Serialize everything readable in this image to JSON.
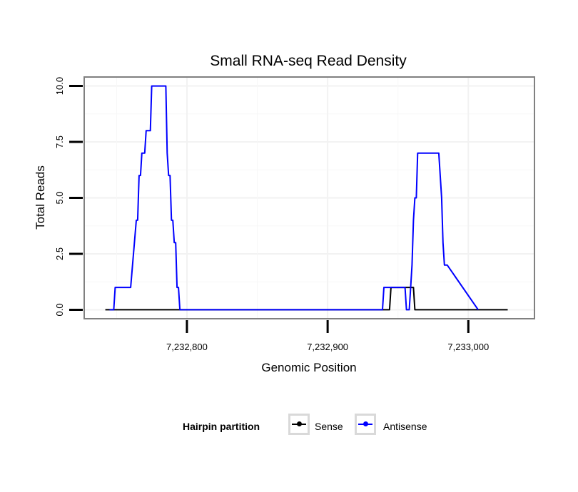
{
  "chart_data": {
    "type": "line",
    "title": "Small RNA-seq Read Density",
    "xlabel": "Genomic Position",
    "ylabel": "Total Reads",
    "xlim": [
      7232727,
      7233047
    ],
    "ylim": [
      -0.4,
      10.4
    ],
    "x_ticks": [
      7232800,
      7232900,
      7233000
    ],
    "x_tick_labels": [
      "7,232,800",
      "7,232,900",
      "7,233,000"
    ],
    "y_ticks": [
      0,
      2.5,
      5,
      7.5,
      10
    ],
    "y_tick_labels": [
      "0.0",
      "2.5",
      "5.0",
      "7.5",
      "10.0"
    ],
    "grid": true,
    "legend": {
      "title": "Hairpin partition",
      "position": "bottom",
      "entries": [
        {
          "name": "Sense",
          "color": "#000000"
        },
        {
          "name": "Antisense",
          "color": "#0000ff"
        }
      ]
    },
    "series": [
      {
        "name": "Sense",
        "color": "#000000",
        "x": [
          7232742,
          7232940,
          7232944,
          7232945,
          7232961,
          7232962,
          7233028
        ],
        "y": [
          0,
          0,
          0,
          1,
          1,
          0,
          0
        ]
      },
      {
        "name": "Antisense",
        "color": "#0000ff",
        "x": [
          7232745,
          7232748,
          7232749,
          7232760,
          7232764,
          7232765,
          7232766,
          7232767,
          7232768,
          7232770,
          7232771,
          7232774,
          7232775,
          7232777,
          7232778,
          7232785,
          7232786,
          7232787,
          7232788,
          7232789,
          7232790,
          7232791,
          7232792,
          7232793,
          7232794,
          7232795,
          7232796,
          7232797,
          7232939,
          7232940,
          7232955,
          7232956,
          7232958,
          7232959,
          7232960,
          7232961,
          7232962,
          7232963,
          7232964,
          7232967,
          7232968,
          7232979,
          7232981,
          7232982,
          7232983,
          7232985,
          7233007
        ],
        "y": [
          0,
          0,
          1,
          1,
          4,
          4,
          6,
          6,
          7,
          7,
          8,
          8,
          10,
          10,
          10,
          10,
          7,
          6,
          6,
          4,
          4,
          3,
          3,
          1,
          1,
          0,
          0,
          0,
          0,
          1,
          1,
          0,
          0,
          1,
          2,
          4,
          5,
          5,
          7,
          7,
          7,
          7,
          5,
          3,
          2,
          2,
          0
        ]
      }
    ]
  }
}
